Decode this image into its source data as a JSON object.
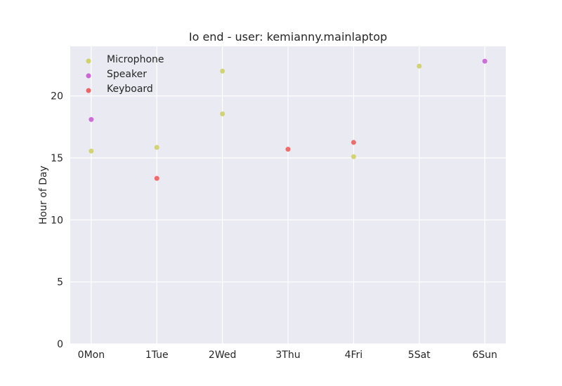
{
  "chart_data": {
    "type": "scatter",
    "title": "Io end - user: kemianny.mainlaptop",
    "xlabel": "",
    "ylabel": "Hour of Day",
    "categories": [
      "0Mon",
      "1Tue",
      "2Wed",
      "3Thu",
      "4Fri",
      "5Sat",
      "6Sun"
    ],
    "xlim": [
      -0.32,
      6.32
    ],
    "ylim": [
      0,
      24
    ],
    "yticks": [
      0,
      5,
      10,
      15,
      20
    ],
    "grid": true,
    "legend_position": "top-left",
    "series": [
      {
        "name": "Microphone",
        "color": "#d1d26a",
        "points": [
          {
            "x": 0,
            "y": 15.55
          },
          {
            "x": 1,
            "y": 15.85
          },
          {
            "x": 2,
            "y": 18.55
          },
          {
            "x": 2,
            "y": 22.0
          },
          {
            "x": 4,
            "y": 15.1
          },
          {
            "x": 5,
            "y": 22.4
          }
        ]
      },
      {
        "name": "Speaker",
        "color": "#cc66d6",
        "points": [
          {
            "x": 0,
            "y": 18.1
          },
          {
            "x": 6,
            "y": 22.8
          }
        ]
      },
      {
        "name": "Keyboard",
        "color": "#f06464",
        "points": [
          {
            "x": 1,
            "y": 13.35
          },
          {
            "x": 3,
            "y": 15.7
          },
          {
            "x": 4,
            "y": 16.25
          }
        ]
      }
    ]
  }
}
